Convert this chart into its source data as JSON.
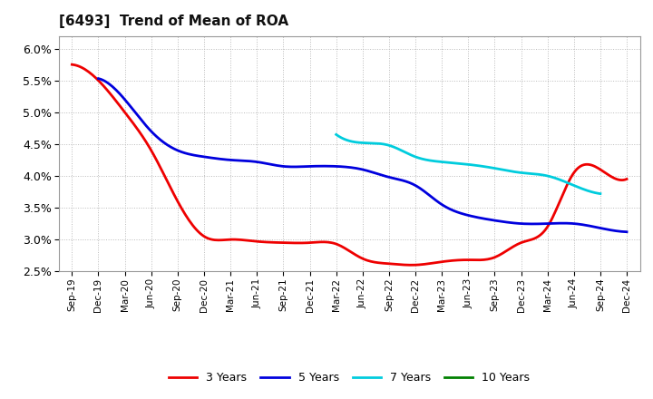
{
  "title": "[6493]  Trend of Mean of ROA",
  "ylim": [
    0.025,
    0.062
  ],
  "yticks": [
    0.025,
    0.03,
    0.035,
    0.04,
    0.045,
    0.05,
    0.055,
    0.06
  ],
  "background_color": "#ffffff",
  "grid_color": "#bbbbbb",
  "series": {
    "3 Years": {
      "color": "#ee0000",
      "x": [
        "Sep-19",
        "Dec-19",
        "Mar-20",
        "Jun-20",
        "Sep-20",
        "Dec-20",
        "Mar-21",
        "Jun-21",
        "Sep-21",
        "Dec-21",
        "Mar-22",
        "Jun-22",
        "Sep-22",
        "Dec-22",
        "Mar-23",
        "Jun-23",
        "Sep-23",
        "Dec-23",
        "Mar-24",
        "Jun-24",
        "Sep-24",
        "Dec-24"
      ],
      "y": [
        0.0575,
        0.055,
        0.05,
        0.044,
        0.036,
        0.0305,
        0.03,
        0.0297,
        0.0295,
        0.0295,
        0.0293,
        0.027,
        0.0262,
        0.026,
        0.0265,
        0.0268,
        0.0272,
        0.0295,
        0.032,
        0.0405,
        0.041,
        0.0395
      ]
    },
    "5 Years": {
      "color": "#0000dd",
      "x": [
        "Dec-19",
        "Mar-20",
        "Jun-20",
        "Sep-20",
        "Dec-20",
        "Mar-21",
        "Jun-21",
        "Sep-21",
        "Dec-21",
        "Mar-22",
        "Jun-22",
        "Sep-22",
        "Dec-22",
        "Mar-23",
        "Jun-23",
        "Sep-23",
        "Dec-23",
        "Mar-24",
        "Jun-24",
        "Sep-24",
        "Dec-24"
      ],
      "y": [
        0.0553,
        0.052,
        0.047,
        0.044,
        0.043,
        0.0425,
        0.0422,
        0.0415,
        0.0415,
        0.0415,
        0.041,
        0.0398,
        0.0385,
        0.0355,
        0.0338,
        0.033,
        0.0325,
        0.0325,
        0.0325,
        0.0318,
        0.0312
      ]
    },
    "7 Years": {
      "color": "#00ccdd",
      "x": [
        "Mar-22",
        "Jun-22",
        "Sep-22",
        "Dec-22",
        "Mar-23",
        "Jun-23",
        "Sep-23",
        "Dec-23",
        "Mar-24",
        "Jun-24",
        "Sep-24"
      ],
      "y": [
        0.0465,
        0.0452,
        0.0448,
        0.043,
        0.0422,
        0.0418,
        0.0412,
        0.0405,
        0.04,
        0.0385,
        0.0372
      ]
    },
    "10 Years": {
      "color": "#008000",
      "x": [],
      "y": []
    }
  },
  "legend_entries": [
    "3 Years",
    "5 Years",
    "7 Years",
    "10 Years"
  ],
  "legend_colors": [
    "#ee0000",
    "#0000dd",
    "#00ccdd",
    "#008000"
  ],
  "all_xticks": [
    "Sep-19",
    "Dec-19",
    "Mar-20",
    "Jun-20",
    "Sep-20",
    "Dec-20",
    "Mar-21",
    "Jun-21",
    "Sep-21",
    "Dec-21",
    "Mar-22",
    "Jun-22",
    "Sep-22",
    "Dec-22",
    "Mar-23",
    "Jun-23",
    "Sep-23",
    "Dec-23",
    "Mar-24",
    "Jun-24",
    "Sep-24",
    "Dec-24"
  ]
}
